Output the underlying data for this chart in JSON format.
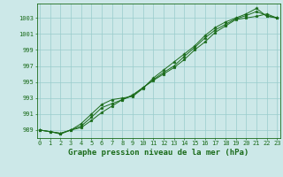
{
  "title": "Graphe pression niveau de la mer (hPa)",
  "x_values": [
    0,
    1,
    2,
    3,
    4,
    5,
    6,
    7,
    8,
    9,
    10,
    11,
    12,
    13,
    14,
    15,
    16,
    17,
    18,
    19,
    20,
    21,
    22,
    23
  ],
  "line1": [
    989.0,
    988.8,
    988.6,
    989.0,
    989.3,
    990.2,
    991.2,
    992.0,
    992.8,
    993.4,
    994.3,
    995.2,
    996.0,
    996.8,
    997.8,
    999.0,
    1000.0,
    1001.2,
    1002.0,
    1002.8,
    1003.0,
    1003.2,
    1003.5,
    1003.0
  ],
  "line2": [
    989.0,
    988.8,
    988.5,
    989.0,
    989.8,
    991.0,
    992.2,
    992.8,
    993.0,
    993.2,
    994.2,
    995.5,
    996.5,
    997.5,
    998.5,
    999.5,
    1000.8,
    1001.8,
    1002.5,
    1003.0,
    1003.5,
    1004.2,
    1003.2,
    1003.0
  ],
  "line3": [
    989.0,
    988.8,
    988.6,
    989.0,
    989.5,
    990.6,
    991.8,
    992.3,
    992.8,
    993.3,
    994.3,
    995.3,
    996.2,
    997.0,
    998.2,
    999.3,
    1000.5,
    1001.5,
    1002.2,
    1002.9,
    1003.3,
    1003.8,
    1003.3,
    1003.0
  ],
  "ylim": [
    988.0,
    1004.8
  ],
  "yticks": [
    989,
    991,
    993,
    995,
    997,
    999,
    1001,
    1003
  ],
  "line_color": "#1a6b1a",
  "marker": "*",
  "markersize": 2.5,
  "bg_color": "#cce8e8",
  "grid_color": "#99cccc",
  "title_fontsize": 6.5,
  "tick_fontsize": 5.0,
  "linewidth": 0.7
}
